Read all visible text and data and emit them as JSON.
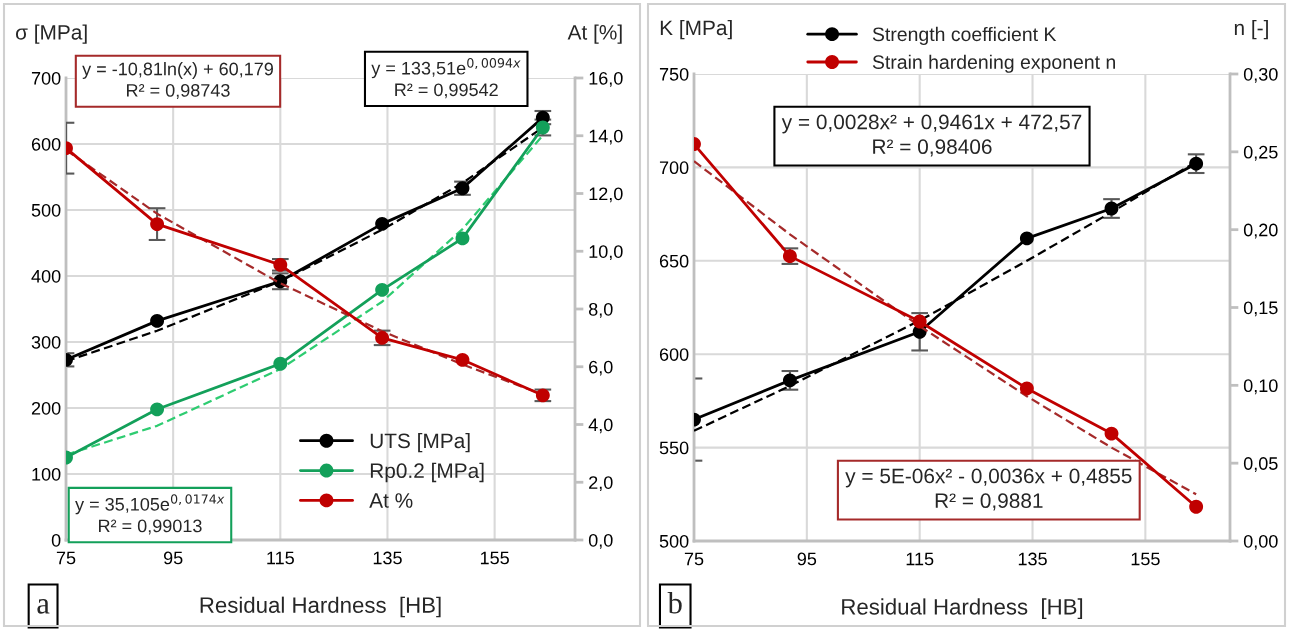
{
  "chart_data": [
    {
      "type": "line",
      "xlabel": "Residual Hardness  [HB]",
      "ylabel": "σ [MPa]",
      "y2label": "At [%]",
      "x": [
        75,
        92,
        115,
        134,
        149,
        164
      ],
      "xlim": [
        75,
        170
      ],
      "xticks": [
        75,
        95,
        115,
        135,
        155
      ],
      "ylim": [
        0,
        700
      ],
      "yticks": [
        0,
        100,
        200,
        300,
        400,
        500,
        600,
        700
      ],
      "y2lim": [
        0,
        16
      ],
      "y2ticks": [
        {
          "value": 0,
          "label": "0,0"
        },
        {
          "value": 2,
          "label": "2,0"
        },
        {
          "value": 4,
          "label": "4,0"
        },
        {
          "value": 6,
          "label": "6,0"
        },
        {
          "value": 8,
          "label": "8,0"
        },
        {
          "value": 10,
          "label": "10,0"
        },
        {
          "value": 12,
          "label": "12,0"
        },
        {
          "value": 14,
          "label": "14,0"
        },
        {
          "value": 16,
          "label": "16,0"
        }
      ],
      "grid": true,
      "legend": "bottom right",
      "marker": "circle",
      "line_style": "solid",
      "series": [
        {
          "name": "UTS [MPa]",
          "color": "#000000",
          "values": [
            273,
            332,
            392,
            479,
            533,
            640
          ],
          "errors": [
            10,
            null,
            12,
            null,
            10,
            10
          ]
        },
        {
          "name": "Rp0.2 [MPa]",
          "color": "#13a05a",
          "values": [
            125,
            198,
            267,
            379,
            457,
            625
          ],
          "errors": [
            null,
            null,
            null,
            null,
            null,
            12
          ]
        },
        {
          "name": "At %",
          "color": "#c00000",
          "axis": "y2",
          "values": [
            13.57,
            10.94,
            9.53,
            7.0,
            6.24,
            5.01
          ],
          "errors": [
            0.88,
            0.55,
            0.2,
            0.25,
            null,
            0.2
          ]
        },
        {
          "type": "line",
          "color": "#000000",
          "marker": "none",
          "line_style": "dashed",
          "x": [
            75,
            92,
            115,
            134,
            149,
            164
          ],
          "values": [
            271,
            317,
            392,
            470,
            541,
            625
          ]
        },
        {
          "type": "line",
          "color": "#2ecc71",
          "marker": "none",
          "line_style": "dashed",
          "x": [
            75,
            92,
            115,
            134,
            149,
            164
          ],
          "values": [
            129,
            173,
            259,
            361,
            471,
            613
          ]
        },
        {
          "type": "line",
          "color": "#a52a2a",
          "marker": "none",
          "line_style": "dashed",
          "axis": "y2",
          "x": [
            75,
            92,
            115,
            134,
            149,
            164
          ],
          "values": [
            13.51,
            11.3,
            8.89,
            7.23,
            6.08,
            5.04
          ]
        }
      ],
      "annotations": [
        "y = -10,81ln(x) + 60,179\nR² = 0,98743",
        "y = 133,51e$^{0,0094x}$\nR² = 0,99542",
        "y = 35,105e$^{0,0174x}$\nR² = 0,99013",
        "a"
      ]
    },
    {
      "type": "line",
      "xlabel": "Residual Hardness  [HB]",
      "ylabel": "K [MPa]",
      "y2label": "n [-]",
      "x": [
        75,
        92,
        115,
        134,
        149,
        164
      ],
      "xlim": [
        75,
        170
      ],
      "xticks": [
        75,
        95,
        115,
        135,
        155
      ],
      "ylim": [
        500,
        750
      ],
      "yticks": [
        500,
        550,
        600,
        650,
        700,
        750
      ],
      "y2lim": [
        0,
        0.3
      ],
      "y2ticks": [
        {
          "value": 0,
          "label": "0,00"
        },
        {
          "value": 0.05,
          "label": "0,05"
        },
        {
          "value": 0.1,
          "label": "0,10"
        },
        {
          "value": 0.15,
          "label": "0,15"
        },
        {
          "value": 0.2,
          "label": "0,20"
        },
        {
          "value": 0.25,
          "label": "0,25"
        },
        {
          "value": 0.3,
          "label": "0,30"
        }
      ],
      "grid": true,
      "legend": "top",
      "marker": "circle",
      "line_style": "solid",
      "series": [
        {
          "name": "Strength coefficient K",
          "color": "#000000",
          "values": [
            565,
            586,
            612,
            662,
            678,
            702
          ],
          "errors": [
            22,
            5,
            10,
            null,
            5,
            5
          ]
        },
        {
          "name": "Strain hardening exponent n",
          "color": "#c00000",
          "axis": "y2",
          "values": [
            0.255,
            0.183,
            0.141,
            0.098,
            0.069,
            0.022
          ],
          "errors": [
            null,
            0.005,
            null,
            null,
            null,
            null
          ]
        },
        {
          "type": "line",
          "color": "#000000",
          "marker": "none",
          "line_style": "dashed",
          "x": [
            75,
            92,
            115,
            134,
            149,
            164
          ],
          "values": [
            559,
            583,
            618,
            650,
            676,
            703
          ]
        },
        {
          "type": "line",
          "color": "#a52a2a",
          "marker": "none",
          "line_style": "dashed",
          "axis": "y2",
          "x": [
            75,
            92,
            115,
            134,
            149,
            164
          ],
          "values": [
            0.244,
            0.197,
            0.138,
            0.093,
            0.06,
            0.03
          ]
        }
      ],
      "annotations": [
        "y = 0,0028x² + 0,9461x + 472,57\nR² = 0,98406",
        "y = 5E-06x² - 0,0036x + 0,4855\nR² = 0,9881",
        "b"
      ]
    }
  ]
}
